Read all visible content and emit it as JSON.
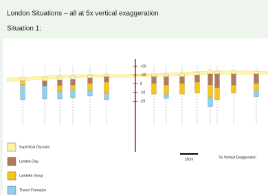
{
  "header": {
    "title": "London Situations – all at 5x vertical exaggeration",
    "subtitle": "Situation 1:"
  },
  "section": {
    "elevation_ticks": [
      "+20",
      "+10",
      "0",
      "-10",
      "-20"
    ]
  },
  "legend": [
    {
      "label": "Superficial Deposits",
      "color": "#fff4a3"
    },
    {
      "label": "London Clay",
      "color": "#b47a5c"
    },
    {
      "label": "Lambeth Group",
      "color": "#f6c41c"
    },
    {
      "label": "Thanet Formation",
      "color": "#8fd0ea"
    }
  ],
  "scale_bar": {
    "label": "100m"
  },
  "exaggeration": "5x Vertical Exaggeration"
}
